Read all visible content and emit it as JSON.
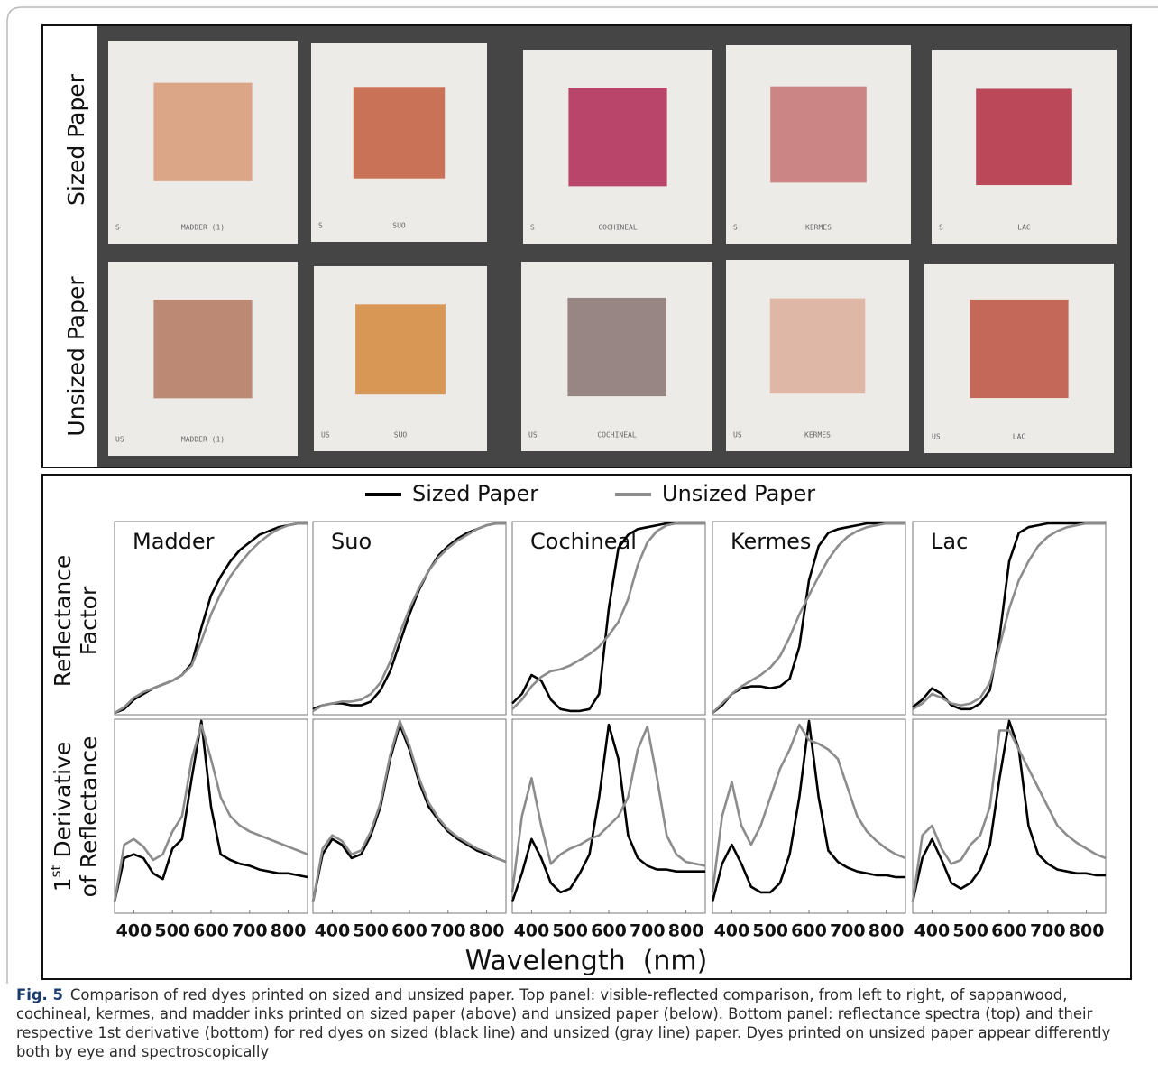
{
  "photo": {
    "row_labels": [
      "Sized Paper",
      "Unsized Paper"
    ],
    "rows": [
      [
        {
          "mark": "S",
          "label": "MADDER (1)",
          "color": "#d9a07e"
        },
        {
          "mark": "S",
          "label": "SUO",
          "color": "#c7674a"
        },
        {
          "mark": "S",
          "label": "COCHINEAL",
          "color": "#b5365f"
        },
        {
          "mark": "S",
          "label": "KERMES",
          "color": "#c97c7c"
        },
        {
          "mark": "S",
          "label": "LAC",
          "color": "#b53a4c"
        }
      ],
      [
        {
          "mark": "US",
          "label": "MADDER (1)",
          "color": "#b7806a"
        },
        {
          "mark": "US",
          "label": "SUO",
          "color": "#d68f48"
        },
        {
          "mark": "US",
          "label": "COCHINEAL",
          "color": "#8f7d7b"
        },
        {
          "mark": "US",
          "label": "KERMES",
          "color": "#ddb2a0"
        },
        {
          "mark": "US",
          "label": "LAC",
          "color": "#c05d4c"
        }
      ]
    ]
  },
  "legend": [
    {
      "name": "Sized Paper",
      "color": "#000000"
    },
    {
      "name": "Unsized Paper",
      "color": "#8c8c8c"
    }
  ],
  "y_label_top": [
    "Reflectance",
    "Factor"
  ],
  "y_label_bottom": {
    "number": "1",
    "sup": "st",
    "rest": " Derivative",
    "line2": "of Reflectance"
  },
  "x_label": "Wavelength  (nm)",
  "chart_data": [
    {
      "type": "line",
      "title": "Madder",
      "x": [
        350,
        375,
        400,
        425,
        450,
        475,
        500,
        525,
        550,
        575,
        600,
        625,
        650,
        675,
        700,
        725,
        750,
        775,
        800,
        825,
        850
      ],
      "xlim": [
        350,
        850
      ],
      "ylim": [
        0,
        1
      ],
      "series": [
        {
          "values": [
            0.0,
            0.02,
            0.07,
            0.1,
            0.13,
            0.15,
            0.17,
            0.2,
            0.26,
            0.45,
            0.62,
            0.72,
            0.8,
            0.86,
            0.9,
            0.94,
            0.96,
            0.98,
            0.99,
            1.0,
            1.0
          ]
        },
        {
          "values": [
            0.0,
            0.03,
            0.08,
            0.11,
            0.13,
            0.15,
            0.17,
            0.2,
            0.25,
            0.38,
            0.52,
            0.63,
            0.72,
            0.79,
            0.85,
            0.9,
            0.94,
            0.97,
            0.99,
            1.0,
            1.0
          ]
        }
      ]
    },
    {
      "type": "line",
      "title": "Suo",
      "x": [
        350,
        375,
        400,
        425,
        450,
        475,
        500,
        525,
        550,
        575,
        600,
        625,
        650,
        675,
        700,
        725,
        750,
        775,
        800,
        825,
        850
      ],
      "xlim": [
        350,
        850
      ],
      "ylim": [
        0,
        1
      ],
      "series": [
        {
          "values": [
            0.02,
            0.04,
            0.05,
            0.05,
            0.04,
            0.04,
            0.06,
            0.12,
            0.22,
            0.37,
            0.52,
            0.65,
            0.75,
            0.83,
            0.88,
            0.92,
            0.95,
            0.97,
            0.99,
            1.0,
            1.0
          ]
        },
        {
          "values": [
            0.01,
            0.04,
            0.05,
            0.06,
            0.06,
            0.07,
            0.1,
            0.16,
            0.27,
            0.42,
            0.55,
            0.66,
            0.75,
            0.82,
            0.87,
            0.91,
            0.94,
            0.97,
            0.99,
            1.0,
            1.0
          ]
        }
      ]
    },
    {
      "type": "line",
      "title": "Cochineal",
      "x": [
        350,
        375,
        400,
        425,
        450,
        475,
        500,
        525,
        550,
        575,
        600,
        625,
        650,
        675,
        700,
        725,
        750,
        775,
        800,
        825,
        850
      ],
      "xlim": [
        350,
        850
      ],
      "ylim": [
        0,
        1
      ],
      "series": [
        {
          "values": [
            0.05,
            0.1,
            0.2,
            0.17,
            0.07,
            0.02,
            0.01,
            0.01,
            0.02,
            0.1,
            0.55,
            0.87,
            0.94,
            0.97,
            0.98,
            0.99,
            1.0,
            1.0,
            1.0,
            1.0,
            1.0
          ]
        },
        {
          "values": [
            0.02,
            0.07,
            0.14,
            0.19,
            0.22,
            0.23,
            0.25,
            0.28,
            0.31,
            0.35,
            0.41,
            0.48,
            0.6,
            0.78,
            0.9,
            0.96,
            0.99,
            1.0,
            1.0,
            1.0,
            1.0
          ]
        }
      ]
    },
    {
      "type": "line",
      "title": "Kermes",
      "x": [
        350,
        375,
        400,
        425,
        450,
        475,
        500,
        525,
        550,
        575,
        600,
        625,
        650,
        675,
        700,
        725,
        750,
        775,
        800,
        825,
        850
      ],
      "xlim": [
        350,
        850
      ],
      "ylim": [
        0,
        1
      ],
      "series": [
        {
          "values": [
            0.0,
            0.04,
            0.1,
            0.13,
            0.14,
            0.14,
            0.13,
            0.14,
            0.18,
            0.35,
            0.7,
            0.88,
            0.95,
            0.97,
            0.98,
            0.99,
            1.0,
            1.0,
            1.0,
            1.0,
            1.0
          ]
        },
        {
          "values": [
            0.0,
            0.05,
            0.1,
            0.14,
            0.17,
            0.2,
            0.24,
            0.3,
            0.4,
            0.52,
            0.62,
            0.72,
            0.81,
            0.88,
            0.93,
            0.96,
            0.98,
            0.99,
            1.0,
            1.0,
            1.0
          ]
        }
      ]
    },
    {
      "type": "line",
      "title": "Lac",
      "x": [
        350,
        375,
        400,
        425,
        450,
        475,
        500,
        525,
        550,
        575,
        600,
        625,
        650,
        675,
        700,
        725,
        750,
        775,
        800,
        825,
        850
      ],
      "xlim": [
        350,
        850
      ],
      "ylim": [
        0,
        1
      ],
      "series": [
        {
          "values": [
            0.03,
            0.07,
            0.13,
            0.1,
            0.04,
            0.02,
            0.02,
            0.05,
            0.12,
            0.4,
            0.8,
            0.95,
            0.98,
            0.99,
            1.0,
            1.0,
            1.0,
            1.0,
            1.0,
            1.0,
            1.0
          ]
        },
        {
          "values": [
            0.02,
            0.05,
            0.1,
            0.08,
            0.05,
            0.04,
            0.05,
            0.08,
            0.16,
            0.35,
            0.55,
            0.7,
            0.8,
            0.88,
            0.93,
            0.96,
            0.98,
            0.99,
            1.0,
            1.0,
            1.0
          ]
        }
      ]
    },
    {
      "type": "line",
      "x": [
        350,
        375,
        400,
        425,
        450,
        475,
        500,
        525,
        550,
        575,
        600,
        625,
        650,
        675,
        700,
        725,
        750,
        775,
        800,
        825,
        850
      ],
      "xlim": [
        350,
        850
      ],
      "ylim": [
        0,
        1
      ],
      "xticks": [
        400,
        500,
        600,
        700,
        800
      ],
      "series": [
        {
          "values": [
            0.05,
            0.28,
            0.3,
            0.28,
            0.2,
            0.17,
            0.33,
            0.38,
            0.7,
            1.0,
            0.55,
            0.3,
            0.27,
            0.25,
            0.24,
            0.22,
            0.21,
            0.2,
            0.2,
            0.19,
            0.18
          ]
        },
        {
          "values": [
            0.05,
            0.35,
            0.38,
            0.34,
            0.27,
            0.3,
            0.42,
            0.5,
            0.8,
            0.98,
            0.8,
            0.6,
            0.5,
            0.45,
            0.42,
            0.4,
            0.38,
            0.36,
            0.34,
            0.32,
            0.3
          ]
        }
      ]
    },
    {
      "type": "line",
      "x": [
        350,
        375,
        400,
        425,
        450,
        475,
        500,
        525,
        550,
        575,
        600,
        625,
        650,
        675,
        700,
        725,
        750,
        775,
        800,
        825,
        850
      ],
      "xlim": [
        350,
        850
      ],
      "ylim": [
        0,
        1
      ],
      "xticks": [
        400,
        500,
        600,
        700,
        800
      ],
      "series": [
        {
          "values": [
            0.05,
            0.3,
            0.38,
            0.35,
            0.28,
            0.3,
            0.4,
            0.55,
            0.8,
            0.98,
            0.85,
            0.68,
            0.55,
            0.48,
            0.42,
            0.38,
            0.35,
            0.32,
            0.3,
            0.28,
            0.26
          ]
        },
        {
          "values": [
            0.05,
            0.33,
            0.4,
            0.37,
            0.3,
            0.32,
            0.42,
            0.57,
            0.82,
            1.0,
            0.87,
            0.7,
            0.57,
            0.49,
            0.43,
            0.39,
            0.36,
            0.33,
            0.31,
            0.28,
            0.26
          ]
        }
      ]
    },
    {
      "type": "line",
      "x": [
        350,
        375,
        400,
        425,
        450,
        475,
        500,
        525,
        550,
        575,
        600,
        625,
        650,
        675,
        700,
        725,
        750,
        775,
        800,
        825,
        850
      ],
      "xlim": [
        350,
        850
      ],
      "ylim": [
        0,
        1
      ],
      "xticks": [
        400,
        500,
        600,
        700,
        800
      ],
      "series": [
        {
          "values": [
            0.05,
            0.2,
            0.38,
            0.28,
            0.15,
            0.1,
            0.12,
            0.2,
            0.3,
            0.6,
            0.98,
            0.8,
            0.4,
            0.28,
            0.24,
            0.22,
            0.22,
            0.21,
            0.21,
            0.21,
            0.21
          ]
        },
        {
          "values": [
            0.1,
            0.5,
            0.7,
            0.45,
            0.25,
            0.3,
            0.33,
            0.35,
            0.38,
            0.4,
            0.45,
            0.5,
            0.6,
            0.85,
            0.97,
            0.7,
            0.4,
            0.3,
            0.26,
            0.25,
            0.24
          ]
        }
      ]
    },
    {
      "type": "line",
      "x": [
        350,
        375,
        400,
        425,
        450,
        475,
        500,
        525,
        550,
        575,
        600,
        625,
        650,
        675,
        700,
        725,
        750,
        775,
        800,
        825,
        850
      ],
      "xlim": [
        350,
        850
      ],
      "ylim": [
        0,
        1
      ],
      "xticks": [
        400,
        500,
        600,
        700,
        800
      ],
      "series": [
        {
          "values": [
            0.05,
            0.25,
            0.35,
            0.25,
            0.13,
            0.1,
            0.1,
            0.15,
            0.3,
            0.6,
            1.0,
            0.6,
            0.32,
            0.26,
            0.23,
            0.21,
            0.2,
            0.19,
            0.19,
            0.18,
            0.18
          ]
        },
        {
          "values": [
            0.1,
            0.5,
            0.68,
            0.45,
            0.35,
            0.45,
            0.6,
            0.75,
            0.85,
            0.98,
            0.9,
            0.88,
            0.85,
            0.8,
            0.65,
            0.5,
            0.42,
            0.37,
            0.33,
            0.3,
            0.28
          ]
        }
      ]
    },
    {
      "type": "line",
      "x": [
        350,
        375,
        400,
        425,
        450,
        475,
        500,
        525,
        550,
        575,
        600,
        625,
        650,
        675,
        700,
        725,
        750,
        775,
        800,
        825,
        850
      ],
      "xlim": [
        350,
        850
      ],
      "ylim": [
        0,
        1
      ],
      "xticks": [
        400,
        500,
        600,
        700,
        800
      ],
      "series": [
        {
          "values": [
            0.05,
            0.28,
            0.38,
            0.27,
            0.15,
            0.12,
            0.15,
            0.22,
            0.35,
            0.7,
            1.0,
            0.85,
            0.45,
            0.3,
            0.25,
            0.22,
            0.21,
            0.2,
            0.2,
            0.19,
            0.19
          ]
        },
        {
          "values": [
            0.05,
            0.4,
            0.45,
            0.33,
            0.25,
            0.27,
            0.35,
            0.4,
            0.55,
            0.95,
            0.95,
            0.85,
            0.75,
            0.65,
            0.55,
            0.45,
            0.4,
            0.36,
            0.33,
            0.3,
            0.28
          ]
        }
      ]
    }
  ],
  "caption": {
    "label": "Fig. 5",
    "text": "Comparison of red dyes printed on sized and unsized paper. Top panel: visible-reflected comparison, from left to right, of sappanwood, cochineal, kermes, and madder inks printed on sized paper (above) and unsized paper (below). Bottom panel: reflectance spectra (top) and their respective 1st derivative (bottom) for red dyes on sized (black line) and unsized (gray line) paper. Dyes printed on unsized paper appear differently both by eye and spectroscopically"
  }
}
